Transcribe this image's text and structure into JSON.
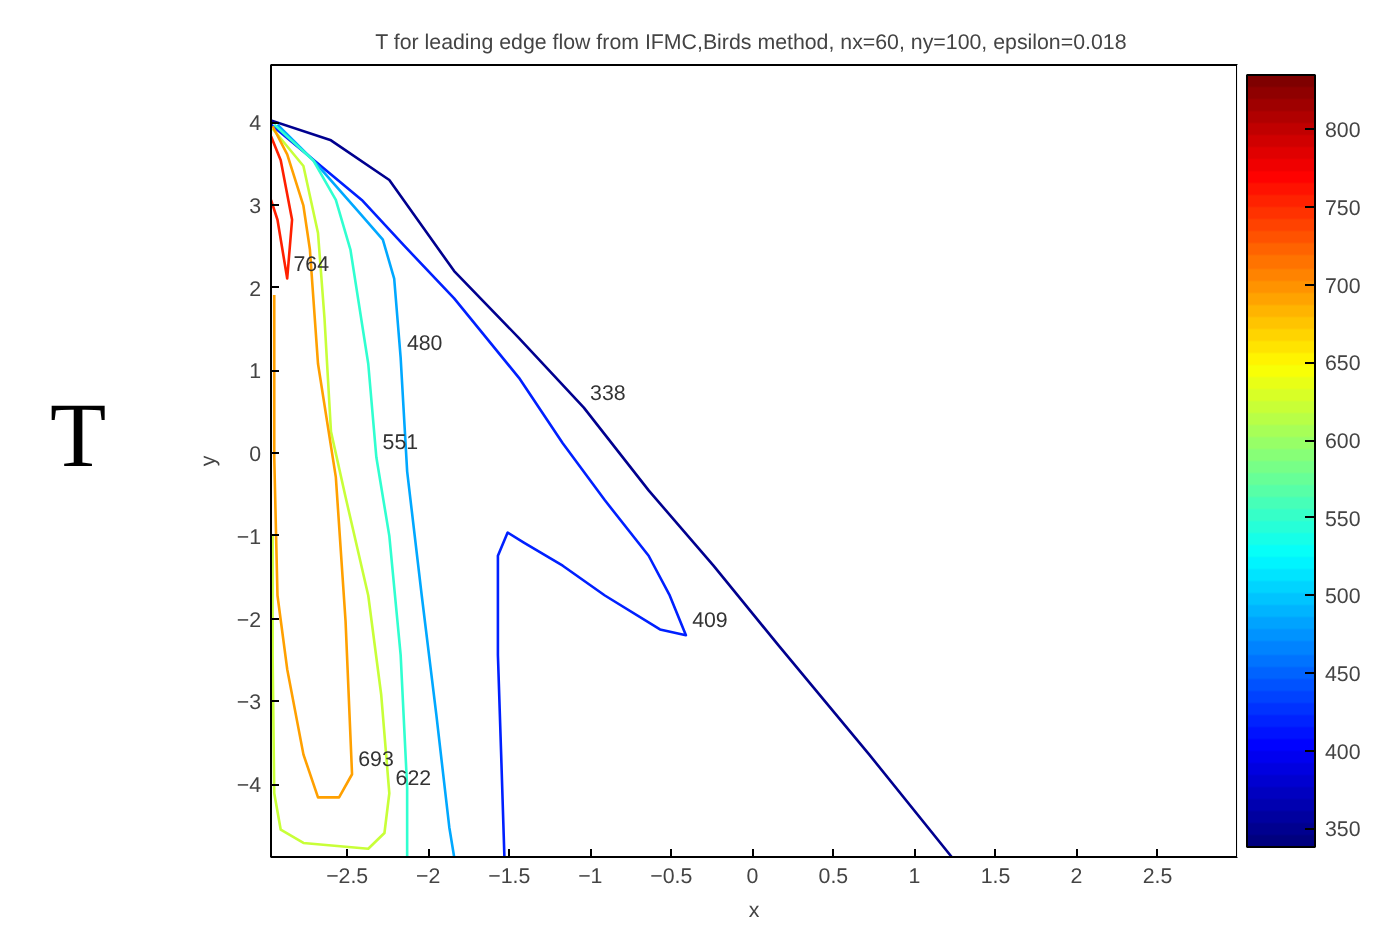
{
  "chart_data": {
    "type": "line",
    "title": "T  for leading edge flow from IFMC,Birds method, nx=60, ny=100, epsilon=0.018",
    "xlabel": "x",
    "ylabel": "y",
    "clabel": null,
    "annotations": [
      "T"
    ],
    "xlim": [
      -2.97,
      2.99
    ],
    "ylim": [
      -4.88,
      4.69
    ],
    "xticks": [
      -2.5,
      -2,
      -1.5,
      -1,
      -0.5,
      0,
      0.5,
      1,
      1.5,
      2,
      2.5
    ],
    "yticks": [
      -4,
      -3,
      -2,
      -1,
      0,
      1,
      2,
      3,
      4
    ],
    "clim": [
      338,
      835
    ],
    "cticks": [
      350,
      400,
      450,
      500,
      550,
      600,
      650,
      700,
      750,
      800
    ],
    "grid": false,
    "marker": "none",
    "line_style": "solid",
    "series": [
      {
        "name": "338",
        "color": "#00008f",
        "x": [
          -2.97,
          -2.6,
          -2.24,
          -1.84,
          -1.44,
          -1.04,
          -0.64,
          -0.24,
          0.16,
          0.72,
          1.23
        ],
        "values": [
          4.02,
          3.78,
          3.3,
          2.2,
          1.39,
          0.55,
          -0.45,
          -1.36,
          -2.32,
          -3.64,
          -4.88
        ]
      },
      {
        "name": "409",
        "color": "#0020ff",
        "x": [
          -2.97,
          -2.41,
          -2.15,
          -1.84,
          -1.44,
          -1.17,
          -0.91,
          -0.64,
          -0.51,
          -0.41,
          -0.57,
          -0.91,
          -1.17,
          -1.41,
          -1.51,
          -1.57,
          -1.57,
          -1.55,
          -1.53
        ],
        "values": [
          3.97,
          3.06,
          2.51,
          1.87,
          0.91,
          0.12,
          -0.57,
          -1.24,
          -1.72,
          -2.2,
          -2.13,
          -1.72,
          -1.36,
          -1.08,
          -0.96,
          -1.24,
          -2.44,
          -3.64,
          -4.88
        ]
      },
      {
        "name": "480",
        "color": "#00a8ff",
        "x": [
          -2.93,
          -2.71,
          -2.44,
          -2.28,
          -2.21,
          -2.17,
          -2.13,
          -2.04,
          -1.95,
          -1.87,
          -1.84
        ],
        "values": [
          3.97,
          3.54,
          2.94,
          2.58,
          2.11,
          1.15,
          -0.22,
          -1.72,
          -3.16,
          -4.52,
          -4.88
        ]
      },
      {
        "name": "551",
        "color": "#30ffd0",
        "x": [
          -2.95,
          -2.71,
          -2.57,
          -2.48,
          -2.37,
          -2.32,
          -2.24,
          -2.17,
          -2.13,
          -2.13
        ],
        "values": [
          3.97,
          3.54,
          3.06,
          2.46,
          1.08,
          -0.05,
          -1.0,
          -2.44,
          -4.04,
          -4.88
        ]
      },
      {
        "name": "622",
        "color": "#c8ff38",
        "x": [
          -2.96,
          -2.77,
          -2.68,
          -2.64,
          -2.6,
          -2.51,
          -2.37,
          -2.29,
          -2.24,
          -2.27,
          -2.37,
          -2.77,
          -2.91,
          -2.95,
          -2.96,
          -2.96
        ],
        "values": [
          3.92,
          3.47,
          2.66,
          1.63,
          0.26,
          -0.53,
          -1.72,
          -2.92,
          -4.11,
          -4.59,
          -4.78,
          -4.71,
          -4.55,
          -4.11,
          -2.44,
          -1.0
        ]
      },
      {
        "name": "693",
        "color": "#ffa000",
        "x": [
          -2.96,
          -2.87,
          -2.77,
          -2.73,
          -2.68,
          -2.57,
          -2.51,
          -2.47,
          -2.55,
          -2.68,
          -2.77,
          -2.87,
          -2.93,
          -2.95,
          -2.95
        ],
        "values": [
          3.95,
          3.61,
          2.99,
          2.46,
          1.08,
          -0.29,
          -2.03,
          -3.88,
          -4.16,
          -4.16,
          -3.64,
          -2.61,
          -1.72,
          -0.05,
          1.91
        ]
      },
      {
        "name": "764",
        "color": "#ff2000",
        "x": [
          -2.97,
          -2.91,
          -2.84,
          -2.87,
          -2.93,
          -2.97
        ],
        "values": [
          3.83,
          3.54,
          2.82,
          2.11,
          2.82,
          3.06
        ]
      }
    ]
  }
}
